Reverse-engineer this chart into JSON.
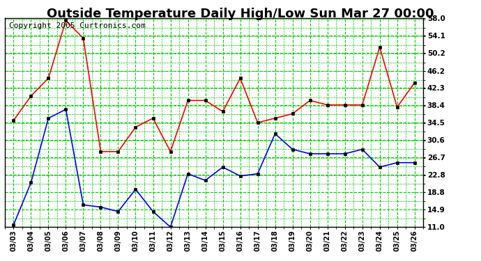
{
  "title": "Outside Temperature Daily High/Low Sun Mar 27 00:00",
  "copyright": "Copyright 2005 Curtronics.com",
  "dates": [
    "03/03",
    "03/04",
    "03/05",
    "03/06",
    "03/07",
    "03/08",
    "03/09",
    "03/10",
    "03/11",
    "03/12",
    "03/13",
    "03/14",
    "03/15",
    "03/16",
    "03/17",
    "03/18",
    "03/19",
    "03/20",
    "03/21",
    "03/22",
    "03/23",
    "03/24",
    "03/25",
    "03/26"
  ],
  "high": [
    35.0,
    40.5,
    44.5,
    57.5,
    53.5,
    28.0,
    28.0,
    33.5,
    35.5,
    28.0,
    39.5,
    39.5,
    37.0,
    44.5,
    34.5,
    35.5,
    36.5,
    39.5,
    38.5,
    38.5,
    38.5,
    51.5,
    38.0,
    43.5
  ],
  "low": [
    11.5,
    21.0,
    35.5,
    37.5,
    16.0,
    15.5,
    14.5,
    19.5,
    14.5,
    11.0,
    23.0,
    21.5,
    24.5,
    22.5,
    23.0,
    32.0,
    28.5,
    27.5,
    27.5,
    27.5,
    28.5,
    24.5,
    25.5,
    25.5
  ],
  "y_ticks": [
    11.0,
    14.9,
    18.8,
    22.8,
    26.7,
    30.6,
    34.5,
    38.4,
    42.3,
    46.2,
    50.2,
    54.1,
    58.0
  ],
  "ylim": [
    11.0,
    58.0
  ],
  "high_color": "#ff0000",
  "low_color": "#0000ff",
  "grid_color": "#00cc00",
  "bg_color": "#ffffff",
  "title_fontsize": 13,
  "copyright_fontsize": 8
}
